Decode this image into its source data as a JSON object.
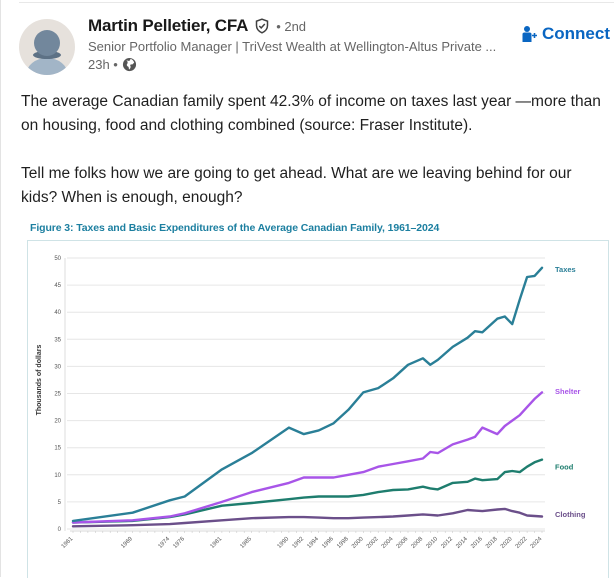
{
  "post": {
    "author": {
      "name": "Martin Pelletier, CFA",
      "verified_icon": "shield-check-icon",
      "degree": "• 2nd",
      "headline": "Senior Portfolio Manager | TriVest Wealth at Wellington-Altus Private ...",
      "time": "23h •",
      "visibility_icon": "globe-icon"
    },
    "connect_label": "Connect",
    "connect_icon": "person-plus-icon",
    "paragraphs": [
      "The average Canadian family spent 42.3% of income on taxes last year —more than on housing, food and clothing combined (source: Fraser Institute).",
      "Tell me folks how we are going to get ahead. What are we leaving behind for our kids? When is enough, enough?"
    ]
  },
  "colors": {
    "brand": "#0a66c2",
    "taxes": "#2a7f97",
    "shelter": "#a855e8",
    "food": "#1e7d6e",
    "clothing": "#6b4f8a",
    "title": "#1c7fa0"
  },
  "chart_data": {
    "type": "line",
    "title": "Figure 3: Taxes and Basic Expenditures of the Average Canadian Family, 1961–2024",
    "xlabel": "",
    "ylabel": "Thousands of dollars",
    "ylim": [
      0,
      50
    ],
    "yticks": [
      "0",
      "5",
      "10",
      "15",
      "20",
      "25",
      "30",
      "35",
      "40",
      "45",
      "50"
    ],
    "grid": true,
    "legend_placement": "right-inline",
    "xtick_labels": [
      "1961",
      "1969",
      "1974",
      "1976",
      "1981",
      "1985",
      "1990",
      "1992",
      "1994",
      "1996",
      "1998",
      "2000",
      "2002",
      "2004",
      "2006",
      "2008",
      "2010",
      "2012",
      "2014",
      "2016",
      "2018",
      "2020",
      "2022",
      "2024"
    ],
    "x": [
      1961,
      1969,
      1974,
      1976,
      1981,
      1985,
      1990,
      1992,
      1994,
      1996,
      1998,
      2000,
      2002,
      2004,
      2006,
      2008,
      2009,
      2010,
      2012,
      2014,
      2015,
      2016,
      2018,
      2019,
      2020,
      2021,
      2022,
      2023,
      2024
    ],
    "series": [
      {
        "name": "Taxes",
        "color_key": "taxes",
        "values": [
          1.5,
          3.0,
          5.3,
          6.0,
          11.0,
          14.0,
          18.7,
          17.5,
          18.2,
          19.5,
          22.0,
          25.2,
          26.0,
          27.8,
          30.3,
          31.5,
          30.3,
          31.2,
          33.6,
          35.3,
          36.5,
          36.3,
          38.8,
          39.2,
          37.8,
          42.3,
          46.5,
          46.7,
          48.2
        ]
      },
      {
        "name": "Shelter",
        "color_key": "shelter",
        "values": [
          1.2,
          1.6,
          2.3,
          2.9,
          5.0,
          6.8,
          8.5,
          9.5,
          9.5,
          9.5,
          10.0,
          10.5,
          11.5,
          12.0,
          12.5,
          13.0,
          14.2,
          14.0,
          15.6,
          16.5,
          17.0,
          18.7,
          17.5,
          19.0,
          20.0,
          21.0,
          22.5,
          24.0,
          25.2
        ]
      },
      {
        "name": "Food",
        "color_key": "food",
        "values": [
          1.2,
          1.5,
          2.2,
          2.7,
          4.3,
          4.8,
          5.5,
          5.8,
          6.0,
          6.0,
          6.0,
          6.3,
          6.8,
          7.2,
          7.3,
          7.8,
          7.5,
          7.3,
          8.5,
          8.7,
          9.3,
          9.0,
          9.2,
          10.5,
          10.7,
          10.5,
          11.5,
          12.3,
          12.8
        ]
      },
      {
        "name": "Clothing",
        "color_key": "clothing",
        "values": [
          0.5,
          0.7,
          0.9,
          1.1,
          1.6,
          2.0,
          2.2,
          2.2,
          2.1,
          2.0,
          2.0,
          2.1,
          2.2,
          2.3,
          2.5,
          2.7,
          2.6,
          2.5,
          2.9,
          3.5,
          3.4,
          3.3,
          3.6,
          3.7,
          3.3,
          3.0,
          2.5,
          2.4,
          2.3
        ]
      }
    ]
  }
}
